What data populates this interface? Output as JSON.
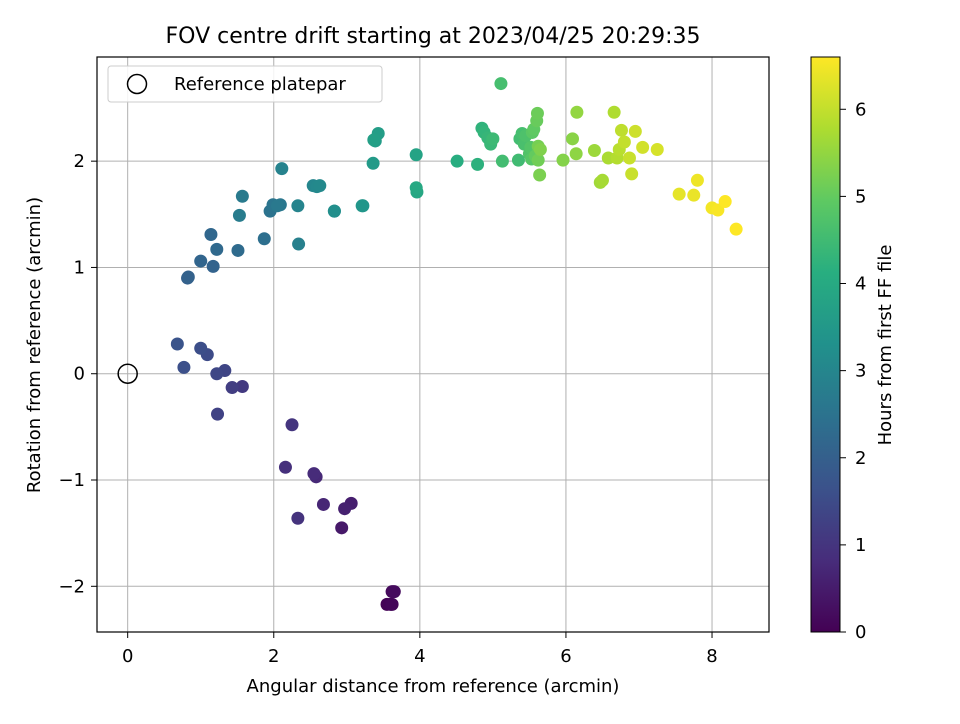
{
  "chart_data": {
    "type": "scatter",
    "title": "FOV centre drift starting at 2023/04/25 20:29:35",
    "xlabel": "Angular distance from reference (arcmin)",
    "ylabel": "Rotation from reference (arcmin)",
    "xlim": [
      -0.42,
      8.78
    ],
    "ylim": [
      -2.43,
      2.98
    ],
    "xticks": [
      0,
      2,
      4,
      6,
      8
    ],
    "yticks": [
      -2,
      -1,
      0,
      1,
      2
    ],
    "xtick_labels": [
      "0",
      "2",
      "4",
      "6",
      "8"
    ],
    "ytick_labels": [
      "−2",
      "−1",
      "0",
      "1",
      "2"
    ],
    "grid": true,
    "legend": {
      "location": "upper-left",
      "entries": [
        {
          "label": "Reference platepar",
          "marker": "open-circle"
        }
      ]
    },
    "reference_point": {
      "x": 0,
      "y": 0
    },
    "colorbar": {
      "label": "Hours from first FF file",
      "colormap": "viridis",
      "range": [
        0,
        6.6
      ],
      "ticks": [
        0,
        1,
        2,
        3,
        4,
        5,
        6
      ],
      "tick_labels": [
        "0",
        "1",
        "2",
        "3",
        "4",
        "5",
        "6"
      ]
    },
    "series": [
      {
        "x": [
          3.55,
          3.6,
          3.62,
          3.62,
          3.65,
          2.93,
          3.06,
          2.97,
          2.68,
          2.58,
          2.55,
          2.16,
          2.33,
          2.25,
          1.57,
          1.43,
          1.23,
          1.33,
          1.22,
          1.09,
          1.0,
          0.77,
          0.68
        ],
        "y": [
          -2.17,
          -2.17,
          -2.17,
          -2.05,
          -2.05,
          -1.45,
          -1.22,
          -1.27,
          -1.23,
          -0.97,
          -0.94,
          -0.88,
          -1.36,
          -0.48,
          -0.12,
          -0.13,
          -0.38,
          0.03,
          0.0,
          0.18,
          0.24,
          0.06,
          0.28
        ],
        "hours": [
          0.05,
          0.08,
          0.1,
          0.15,
          0.18,
          0.45,
          0.55,
          0.6,
          0.7,
          0.75,
          0.8,
          0.9,
          0.95,
          1.0,
          1.1,
          1.2,
          1.3,
          1.35,
          1.4,
          1.5,
          1.55,
          1.6,
          1.7
        ]
      },
      {
        "x": [
          0.82,
          0.83,
          1.17,
          1.0,
          1.14,
          1.22,
          1.51,
          1.87,
          1.95,
          1.99,
          2.09,
          2.05,
          1.57,
          1.53,
          2.34,
          2.11,
          2.33,
          2.54,
          2.59,
          2.63,
          2.83,
          2.83,
          3.22,
          3.21,
          3.36,
          3.39,
          3.43,
          3.37,
          3.95,
          3.96,
          3.95
        ],
        "y": [
          0.9,
          0.91,
          1.01,
          1.06,
          1.31,
          1.17,
          1.16,
          1.27,
          1.53,
          1.59,
          1.59,
          1.58,
          1.67,
          1.49,
          1.22,
          1.93,
          1.58,
          1.77,
          1.76,
          1.77,
          1.53,
          1.53,
          1.58,
          1.58,
          1.98,
          2.19,
          2.26,
          2.2,
          2.06,
          1.71,
          1.75
        ],
        "hours": [
          2.0,
          2.05,
          2.1,
          2.15,
          2.2,
          2.25,
          2.3,
          2.4,
          2.5,
          2.55,
          2.6,
          2.65,
          2.7,
          2.75,
          2.85,
          2.9,
          2.95,
          3.0,
          3.05,
          3.1,
          3.2,
          3.25,
          3.4,
          3.45,
          3.55,
          3.6,
          3.65,
          3.7,
          3.8,
          3.9,
          3.95
        ]
      },
      {
        "x": [
          4.51,
          4.79,
          4.85,
          4.88,
          4.93,
          4.97,
          5.0,
          5.11,
          5.13,
          5.35,
          5.37,
          5.4,
          5.43,
          5.45,
          5.5,
          5.52,
          5.53,
          5.54,
          5.56,
          5.58,
          5.6,
          5.61,
          5.62,
          5.62,
          5.64,
          5.65,
          5.96,
          6.09,
          6.14,
          6.15,
          6.39,
          6.47,
          6.5,
          6.58,
          6.66,
          6.7,
          6.73,
          6.76,
          6.8,
          6.87,
          6.9,
          6.95,
          7.05,
          7.25,
          7.55,
          7.75,
          7.8,
          8.0,
          8.08,
          8.18,
          8.33
        ],
        "y": [
          2.0,
          1.97,
          2.31,
          2.27,
          2.22,
          2.16,
          2.21,
          2.73,
          2.0,
          2.01,
          2.21,
          2.26,
          2.16,
          2.24,
          2.07,
          2.13,
          2.02,
          2.27,
          2.3,
          2.05,
          2.38,
          2.45,
          2.01,
          2.14,
          1.87,
          2.11,
          2.01,
          2.21,
          2.07,
          2.46,
          2.1,
          1.8,
          1.82,
          2.03,
          2.46,
          2.03,
          2.11,
          2.29,
          2.18,
          2.03,
          1.88,
          2.28,
          2.13,
          2.11,
          1.69,
          1.68,
          1.82,
          1.56,
          1.54,
          1.62,
          1.36
        ],
        "hours": [
          4.1,
          4.2,
          4.25,
          4.3,
          4.35,
          4.4,
          4.45,
          4.6,
          4.55,
          4.5,
          4.55,
          4.6,
          4.65,
          4.7,
          4.75,
          4.8,
          4.85,
          4.9,
          4.95,
          5.0,
          5.05,
          5.1,
          5.15,
          5.2,
          5.25,
          5.3,
          5.35,
          5.4,
          5.45,
          5.5,
          5.6,
          5.65,
          5.7,
          5.75,
          5.8,
          5.85,
          5.9,
          5.95,
          6.0,
          6.05,
          6.05,
          6.1,
          6.15,
          6.2,
          6.35,
          6.4,
          6.45,
          6.5,
          6.55,
          6.6,
          6.6
        ]
      }
    ]
  }
}
